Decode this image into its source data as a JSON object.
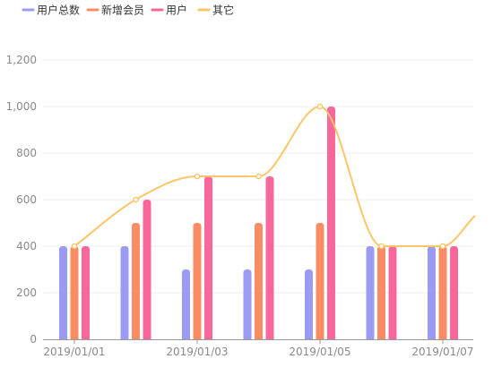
{
  "chart_data": {
    "type": "bar",
    "categories": [
      "2019/01/01",
      "2019/01/02",
      "2019/01/03",
      "2019/01/04",
      "2019/01/05",
      "2019/01/06",
      "2019/01/07"
    ],
    "x_tick_labels": [
      "2019/01/01",
      "2019/01/03",
      "2019/01/05",
      "2019/01/07"
    ],
    "series": [
      {
        "name": "用户总数",
        "type": "bar",
        "color": "#9b9bf4",
        "values": [
          400,
          400,
          300,
          300,
          300,
          400,
          400
        ]
      },
      {
        "name": "新增会员",
        "type": "bar",
        "color": "#f98c62",
        "values": [
          400,
          500,
          500,
          500,
          500,
          400,
          400
        ]
      },
      {
        "name": "用户",
        "type": "bar",
        "color": "#f7679c",
        "values": [
          400,
          600,
          700,
          700,
          1000,
          400,
          400
        ]
      },
      {
        "name": "其它",
        "type": "line",
        "smooth": true,
        "color": "#fcc667",
        "values": [
          400,
          600,
          700,
          700,
          1000,
          400,
          400
        ]
      }
    ],
    "y_ticks": [
      0,
      200,
      400,
      600,
      800,
      1000,
      1200
    ],
    "y_tick_labels": [
      "0",
      "200",
      "400",
      "600",
      "800",
      "1,000",
      "1,200"
    ],
    "ylim": [
      0,
      1200
    ],
    "grid": true,
    "legend_position": "top-left",
    "title": "",
    "xlabel": "",
    "ylabel": ""
  }
}
